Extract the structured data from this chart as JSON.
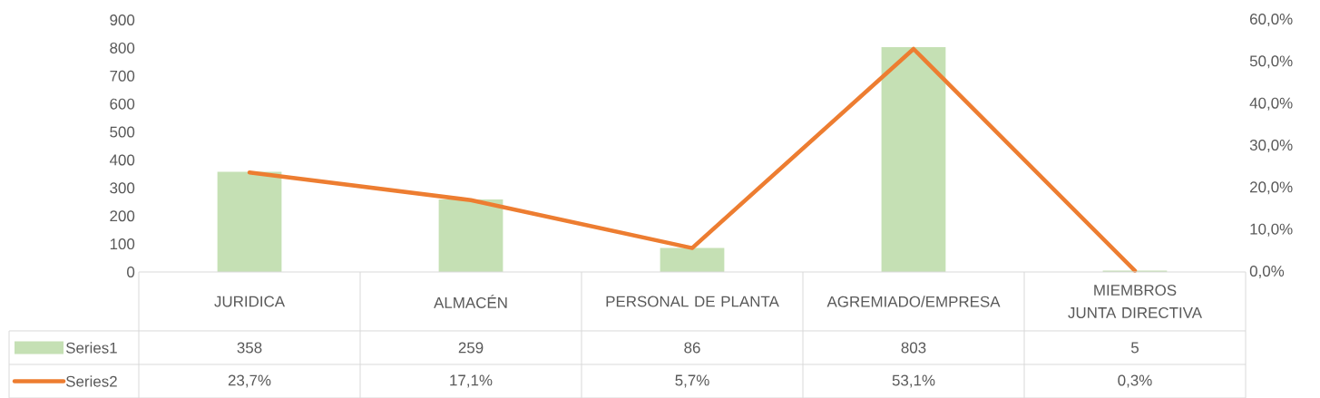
{
  "chart_data": {
    "type": "bar",
    "categories": [
      "JURIDICA",
      "ALMACÉN",
      "PERSONAL DE PLANTA",
      "AGREMIADO/EMPRESA",
      "MIEMBROS JUNTA DIRECTIVA"
    ],
    "series": [
      {
        "name": "Series1",
        "color": "#c5e0b4",
        "values": [
          358,
          259,
          86,
          803,
          5
        ],
        "value_labels": [
          "358",
          "259",
          "86",
          "803",
          "5"
        ]
      },
      {
        "name": "Series2",
        "type": "line",
        "axis": "y2",
        "color": "#ed7d31",
        "values": [
          23.7,
          17.1,
          5.7,
          53.1,
          0.3
        ],
        "value_labels": [
          "23,7%",
          "17,1%",
          "5,7%",
          "53,1%",
          "0,3%"
        ]
      }
    ],
    "ylim": [
      0,
      900
    ],
    "yticks": [
      0,
      100,
      200,
      300,
      400,
      500,
      600,
      700,
      800,
      900
    ],
    "y2lim": [
      0,
      60
    ],
    "y2ticks": [
      {
        "value": 0,
        "label": "0,0%"
      },
      {
        "value": 10,
        "label": "10,0%"
      },
      {
        "value": 20,
        "label": "20,0%"
      },
      {
        "value": 30,
        "label": "30,0%"
      },
      {
        "value": 40,
        "label": "40,0%"
      },
      {
        "value": 50,
        "label": "50,0%"
      },
      {
        "value": 60,
        "label": "60,0%"
      }
    ],
    "legend": "bottom"
  }
}
